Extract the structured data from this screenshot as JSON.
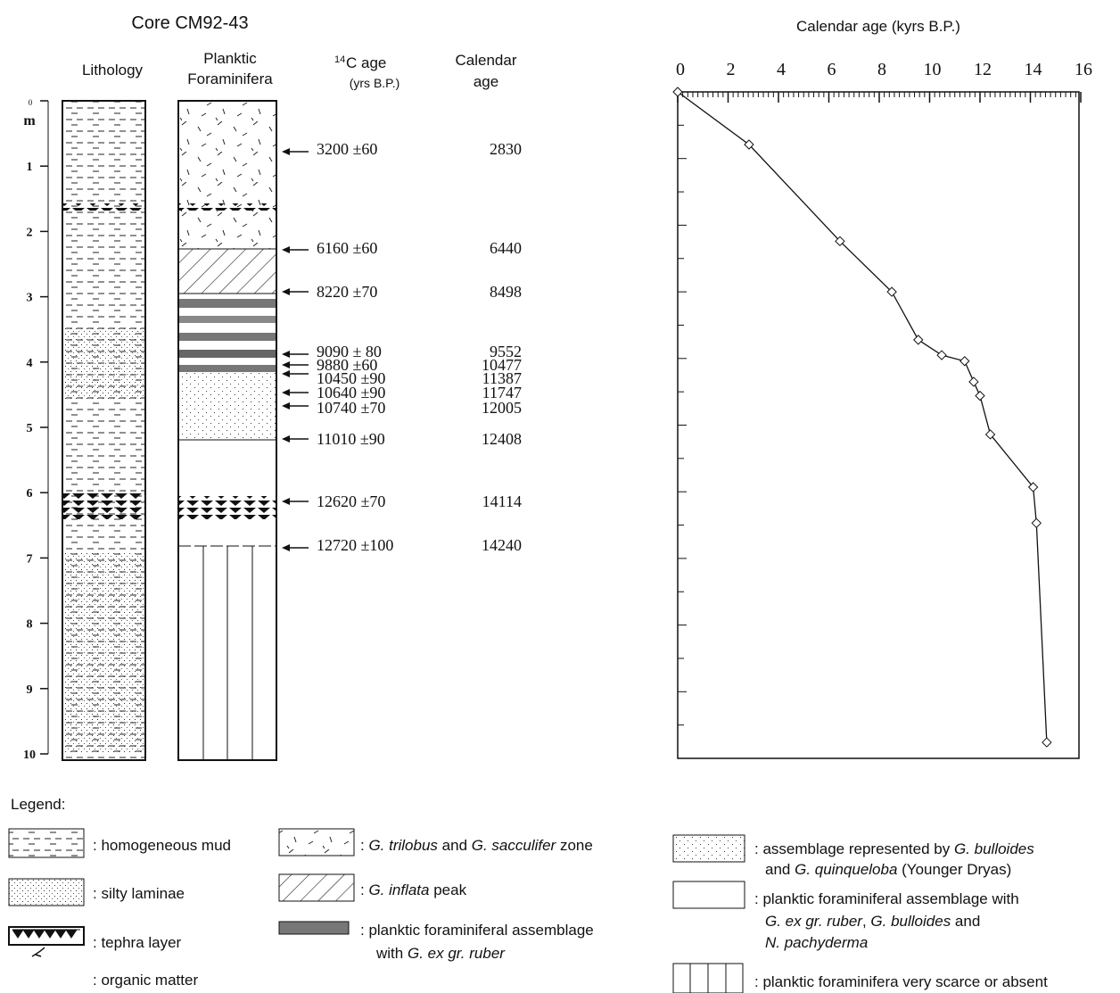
{
  "core_title": "Core CM92-43",
  "headers": {
    "lithology": "Lithology",
    "forams": [
      "Planktic",
      "Foraminifera"
    ],
    "c14_sup": "14",
    "c14": "C age",
    "c14_unit": "(yrs B.P.)",
    "calendar": [
      "Calendar",
      "age"
    ]
  },
  "depth_unit": "m",
  "depth_ticks": [
    0,
    1,
    2,
    3,
    4,
    5,
    6,
    7,
    8,
    9,
    10
  ],
  "dates": [
    {
      "c14": "3200 ±60",
      "calendar": "2830"
    },
    {
      "c14": "6160 ±60",
      "calendar": "6440"
    },
    {
      "c14": "8220 ±70",
      "calendar": "8498"
    },
    {
      "c14": "9090 ± 80",
      "calendar": "9552"
    },
    {
      "c14": "9880 ±60",
      "calendar": "10477"
    },
    {
      "c14": "10450 ±90",
      "calendar": "11387"
    },
    {
      "c14": "10640 ±90",
      "calendar": "11747"
    },
    {
      "c14": "10740 ±70",
      "calendar": "12005"
    },
    {
      "c14": "11010 ±90",
      "calendar": "12408"
    },
    {
      "c14": "12620 ±70",
      "calendar": "14114"
    },
    {
      "c14": "12720 ±100",
      "calendar": "14240"
    }
  ],
  "chart_data": {
    "type": "line",
    "x_label": "Calendar age (kyrs B.P.)",
    "x": [
      0,
      2.83,
      6.44,
      8.5,
      9.55,
      10.48,
      11.39,
      11.75,
      12.0,
      12.41,
      14.11,
      14.24,
      14.65
    ],
    "values": [
      0,
      0.79,
      2.24,
      3.0,
      3.72,
      3.95,
      4.04,
      4.35,
      4.56,
      5.14,
      5.93,
      6.47,
      9.76
    ],
    "xlim": [
      0,
      16
    ],
    "xticks": [
      0,
      2,
      4,
      6,
      8,
      10,
      12,
      14,
      16
    ],
    "ylim": [
      0,
      10
    ],
    "color": "#111111"
  },
  "legend": {
    "title": "Legend:",
    "items": [
      {
        "label": [
          ": homogeneous mud"
        ]
      },
      {
        "label": [
          ": silty laminae"
        ]
      },
      {
        "label": [
          ": tephra layer"
        ]
      },
      {
        "label": [
          ": organic matter"
        ]
      },
      {
        "label": [
          ": ",
          "G. trilobus",
          " and ",
          "G. sacculifer",
          " zone"
        ]
      },
      {
        "label": [
          ":  ",
          "G. inflata",
          " peak"
        ]
      },
      {
        "label": [
          ":  planktic foraminiferal assemblage"
        ]
      },
      {
        "label": [
          "with ",
          "G. ex gr. ruber"
        ]
      },
      {
        "label": [
          ": assemblage represented by ",
          "G. bulloides"
        ]
      },
      {
        "label": [
          "and ",
          "G. quinqueloba",
          " (Younger Dryas)"
        ]
      },
      {
        "label": [
          ": planktic foraminiferal assemblage with"
        ]
      },
      {
        "label": [
          "",
          "G. ex gr. ruber",
          ", ",
          "G. bulloides",
          "  and"
        ]
      },
      {
        "label": [
          "",
          "N. pachyderma"
        ]
      },
      {
        "label": [
          ": planktic foraminifera very scarce or absent"
        ]
      }
    ]
  }
}
